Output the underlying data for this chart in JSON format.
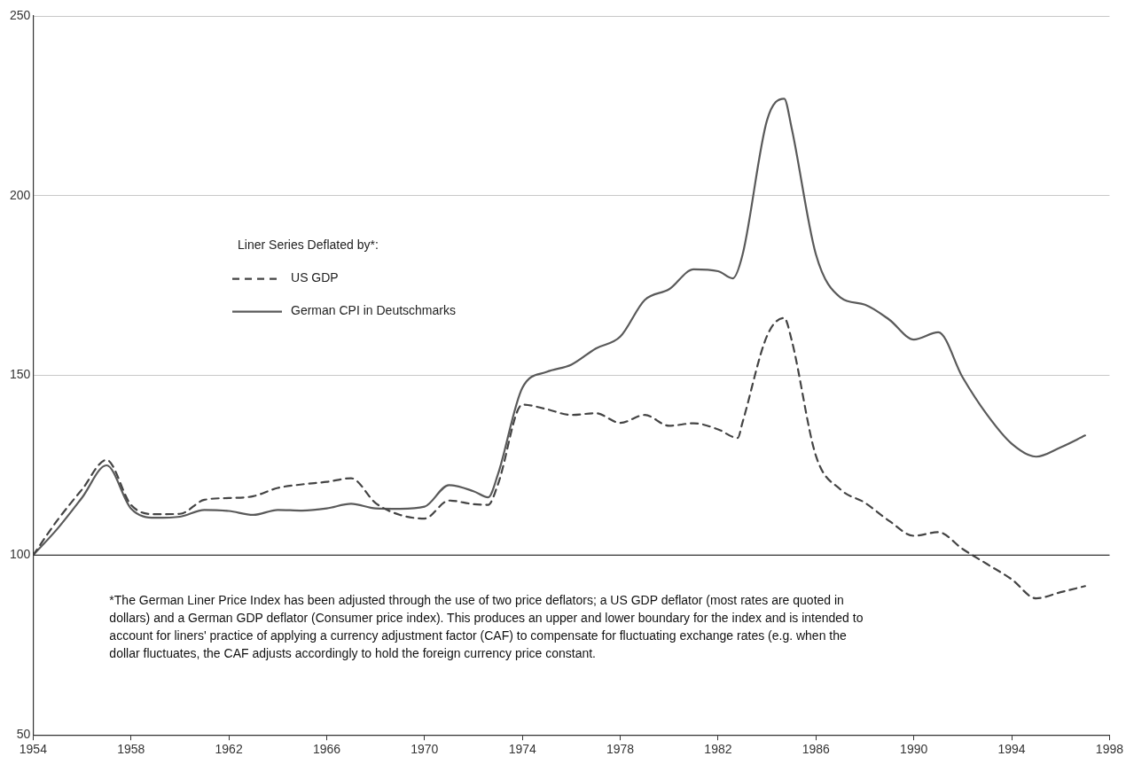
{
  "chart_data": {
    "type": "line",
    "legend_title": "Liner Series Deflated by*:",
    "legend": "top left",
    "grid": "y",
    "marker": "none",
    "xlim": [
      1954,
      1998
    ],
    "xticks": [
      1954,
      1958,
      1962,
      1966,
      1970,
      1974,
      1978,
      1982,
      1986,
      1990,
      1994,
      1998
    ],
    "ylim": [
      50,
      250
    ],
    "yticks": [
      50,
      100,
      150,
      200,
      250
    ],
    "ref_lines": [
      {
        "axis": "y",
        "value": 100,
        "color": "#333333"
      }
    ],
    "series": [
      {
        "name": "US GDP",
        "color": "#444444",
        "line_style": "dashed",
        "x": [
          1954,
          1955,
          1956,
          1957,
          1958,
          1959,
          1960,
          1961,
          1962,
          1963,
          1964,
          1965,
          1966,
          1967,
          1968,
          1969,
          1970,
          1971,
          1972,
          1972.6,
          1973,
          1974,
          1975,
          1976,
          1977,
          1978,
          1979,
          1980,
          1981,
          1982,
          1982.8,
          1983,
          1984,
          1984.7,
          1985,
          1986,
          1987,
          1988,
          1989,
          1990,
          1991,
          1992,
          1993,
          1994,
          1995,
          1996,
          1997
        ],
        "values": [
          100,
          109.8,
          118.3,
          126.5,
          114,
          111.4,
          111.5,
          115.4,
          115.9,
          116.4,
          118.7,
          119.7,
          120.4,
          121.4,
          114.5,
          111.2,
          110.2,
          115.2,
          114.2,
          114,
          119.7,
          141.9,
          140.6,
          139,
          139.5,
          136.8,
          139,
          136,
          136.7,
          135,
          132.6,
          137,
          161,
          166,
          160,
          127.6,
          118.3,
          114.6,
          109.5,
          105.4,
          106.4,
          101.7,
          97.5,
          93.3,
          88,
          89.7,
          91.4
        ]
      },
      {
        "name": "German CPI in Deutschmarks",
        "color": "#5a5a5a",
        "line_style": "solid",
        "x": [
          1954,
          1955,
          1956,
          1957,
          1958,
          1959,
          1960,
          1961,
          1962,
          1963,
          1964,
          1965,
          1966,
          1967,
          1968,
          1969,
          1970,
          1971,
          1972,
          1972.6,
          1973,
          1974,
          1975,
          1976,
          1977,
          1978,
          1979,
          1980,
          1981,
          1982,
          1982.6,
          1983,
          1984,
          1984.7,
          1985,
          1986,
          1987,
          1988,
          1989,
          1990,
          1991,
          1992,
          1993,
          1994,
          1995,
          1996,
          1997
        ],
        "values": [
          100,
          107.4,
          116,
          125,
          113,
          110.4,
          110.7,
          112.6,
          112.3,
          111.2,
          112.6,
          112.4,
          113,
          114.3,
          113,
          112.9,
          113.5,
          119.5,
          117.8,
          116.1,
          122.5,
          146.6,
          151,
          153,
          157.5,
          160.8,
          171,
          174,
          179.5,
          179,
          177,
          183.6,
          221,
          227,
          219,
          183.6,
          171.7,
          169.7,
          165.5,
          160,
          162,
          149.4,
          139,
          131,
          127.4,
          130,
          133.3
        ]
      }
    ],
    "annotations": [
      "*The German Liner Price Index has been adjusted through the use of two price deflators; a US GDP deflator (most rates are quoted in dollars) and a German GDP deflator (Consumer price index). This produces an upper and lower boundary for the index and is intended to account for liners' practice of applying a currency adjustment factor (CAF) to compensate for fluctuating exchange rates (e.g. when the dollar fluctuates, the CAF adjusts accordingly to hold the foreign currency price constant."
    ]
  }
}
